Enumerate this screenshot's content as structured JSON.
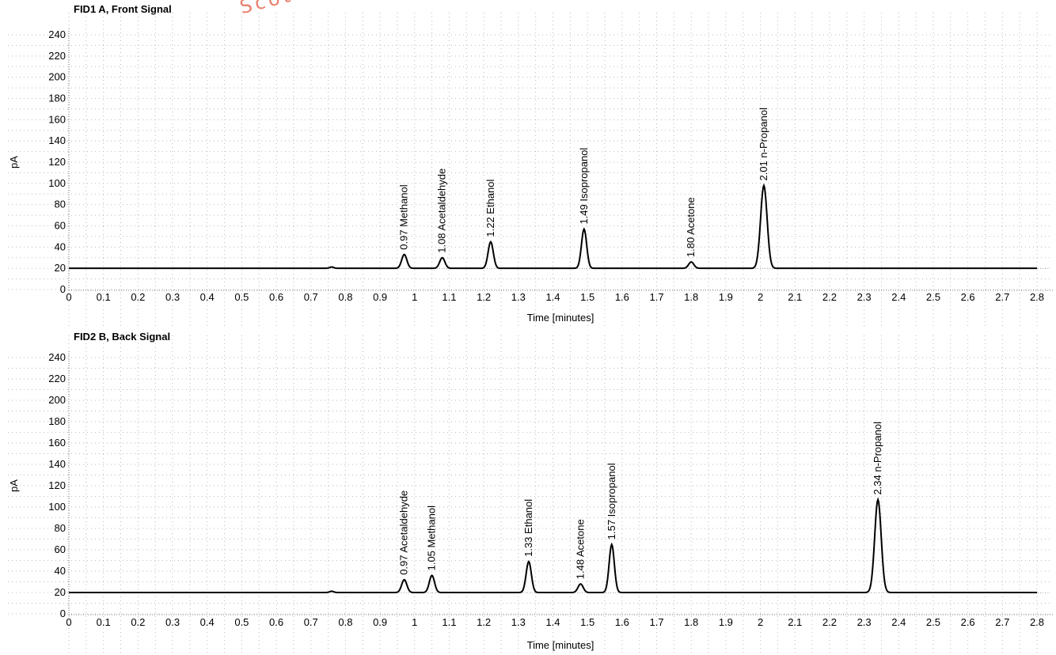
{
  "chart_data": [
    {
      "type": "line",
      "title": "FID1 A, Front Signal",
      "xlabel": "Time [minutes]",
      "ylabel": "pA",
      "xlim": [
        0,
        2.8
      ],
      "ylim": [
        0,
        240
      ],
      "x_ticks": [
        "0",
        "0.1",
        "0.2",
        "0.3",
        "0.4",
        "0.5",
        "0.6",
        "0.7",
        "0.8",
        "0.9",
        "1",
        "1.1",
        "1.2",
        "1.3",
        "1.4",
        "1.5",
        "1.6",
        "1.7",
        "1.8",
        "1.9",
        "2",
        "2.1",
        "2.2",
        "2.3",
        "2.4",
        "2.5",
        "2.6",
        "2.7",
        "2.8"
      ],
      "y_ticks": [
        "0",
        "20",
        "40",
        "60",
        "80",
        "100",
        "120",
        "140",
        "160",
        "180",
        "200",
        "220",
        "240"
      ],
      "grid": true,
      "baseline": 20,
      "peaks": [
        {
          "label": "0.97  Methanol",
          "time": 0.97,
          "height": 33
        },
        {
          "label": "1.08  Acetaldehyde",
          "time": 1.08,
          "height": 30
        },
        {
          "label": "1.22  Ethanol",
          "time": 1.22,
          "height": 45
        },
        {
          "label": "1.49  Isopropanol",
          "time": 1.49,
          "height": 57
        },
        {
          "label": "1.80  Acetone",
          "time": 1.8,
          "height": 26
        },
        {
          "label": "2.01  n-Propanol",
          "time": 2.01,
          "height": 98
        }
      ]
    },
    {
      "type": "line",
      "title": "FID2 B, Back Signal",
      "xlabel": "Time [minutes]",
      "ylabel": "pA",
      "xlim": [
        0,
        2.8
      ],
      "ylim": [
        0,
        240
      ],
      "x_ticks": [
        "0",
        "0.1",
        "0.2",
        "0.3",
        "0.4",
        "0.5",
        "0.6",
        "0.7",
        "0.8",
        "0.9",
        "1",
        "1.1",
        "1.2",
        "1.3",
        "1.4",
        "1.5",
        "1.6",
        "1.7",
        "1.8",
        "1.9",
        "2",
        "2.1",
        "2.2",
        "2.3",
        "2.4",
        "2.5",
        "2.6",
        "2.7",
        "2.8"
      ],
      "y_ticks": [
        "0",
        "20",
        "40",
        "60",
        "80",
        "100",
        "120",
        "140",
        "160",
        "180",
        "200",
        "220",
        "240"
      ],
      "grid": true,
      "baseline": 20,
      "peaks": [
        {
          "label": "0.97  Acetaldehyde",
          "time": 0.97,
          "height": 32
        },
        {
          "label": "1.05  Methanol",
          "time": 1.05,
          "height": 36
        },
        {
          "label": "1.33  Ethanol",
          "time": 1.33,
          "height": 49
        },
        {
          "label": "1.48  Acetone",
          "time": 1.48,
          "height": 28
        },
        {
          "label": "1.57  Isopropanol",
          "time": 1.57,
          "height": 65
        },
        {
          "label": "2.34  n-Propanol",
          "time": 2.34,
          "height": 107
        }
      ]
    }
  ],
  "watermark": "Scott"
}
